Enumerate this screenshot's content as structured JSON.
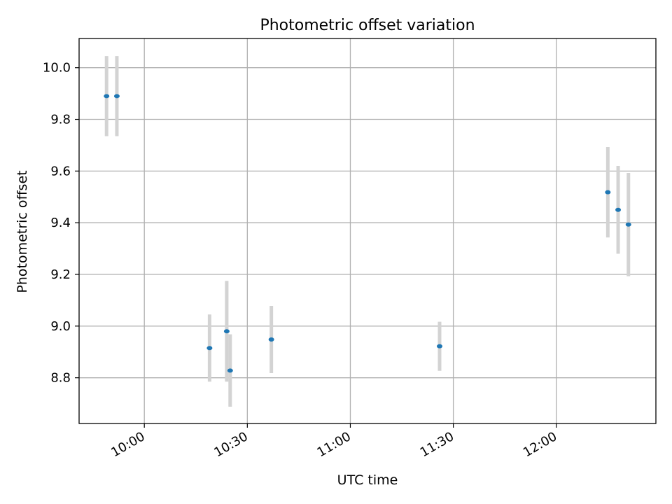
{
  "chart_data": {
    "type": "scatter",
    "title": "Photometric offset variation",
    "xlabel": "UTC time",
    "ylabel": "Photometric offset",
    "x_axis_type": "time",
    "xlim": [
      "09:41",
      "12:29"
    ],
    "ylim": [
      8.623,
      10.113
    ],
    "x_ticks": [
      "10:00",
      "10:30",
      "11:00",
      "11:30",
      "12:00"
    ],
    "y_ticks": [
      "8.8",
      "9.0",
      "9.2",
      "9.4",
      "9.6",
      "9.8",
      "10.0"
    ],
    "grid": true,
    "marker_color": "#1f77b4",
    "errorbar_color": "#d3d3d3",
    "points": [
      {
        "time": "09:49",
        "y": 9.89,
        "err": 0.155
      },
      {
        "time": "09:52",
        "y": 9.89,
        "err": 0.155
      },
      {
        "time": "10:19",
        "y": 8.915,
        "err": 0.13
      },
      {
        "time": "10:24",
        "y": 8.98,
        "err": 0.195
      },
      {
        "time": "10:25",
        "y": 8.828,
        "err": 0.14
      },
      {
        "time": "10:37",
        "y": 8.948,
        "err": 0.13
      },
      {
        "time": "11:26",
        "y": 8.922,
        "err": 0.095
      },
      {
        "time": "12:15",
        "y": 9.518,
        "err": 0.175
      },
      {
        "time": "12:18",
        "y": 9.45,
        "err": 0.17
      },
      {
        "time": "12:21",
        "y": 9.393,
        "err": 0.2
      }
    ]
  }
}
